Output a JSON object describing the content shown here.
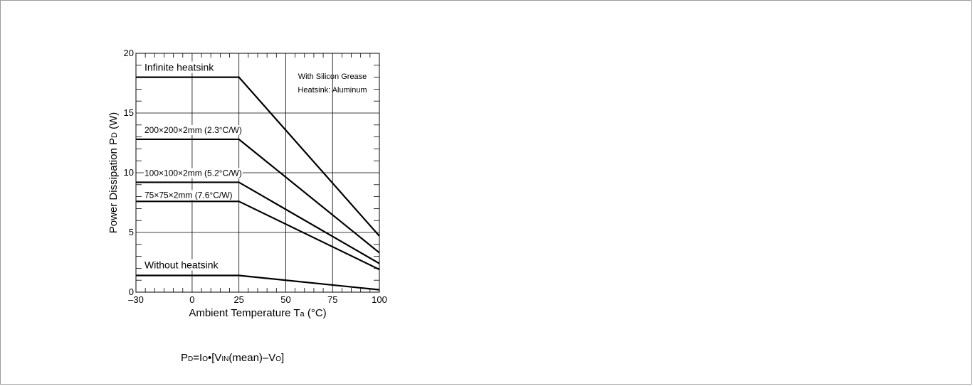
{
  "chart_data": {
    "type": "line",
    "xlabel": {
      "main": "Ambient Temperature T",
      "sub": "a",
      "unit": " (°C)"
    },
    "ylabel": {
      "main": "Power Dissipation P",
      "sub": "D",
      "unit": " (W)"
    },
    "xlim": [
      -30,
      100
    ],
    "ylim": [
      0,
      20
    ],
    "xticks": [
      -30,
      0,
      25,
      50,
      75,
      100
    ],
    "xtick_labels": [
      "–30",
      "0",
      "25",
      "50",
      "75",
      "100"
    ],
    "yticks": [
      0,
      5,
      10,
      15,
      20
    ],
    "ytick_labels": [
      "0",
      "5",
      "10",
      "15",
      "20"
    ],
    "grid": true,
    "note": [
      "With Silicon Grease",
      "Heatsink: Aluminum"
    ],
    "series": [
      {
        "name": "Infinite heatsink",
        "x": [
          -30,
          25,
          100
        ],
        "y": [
          18.0,
          18.0,
          4.7
        ]
      },
      {
        "name": "200×200×2mm (2.3°C/W)",
        "x": [
          -30,
          25,
          100
        ],
        "y": [
          12.8,
          12.8,
          3.3
        ]
      },
      {
        "name": "100×100×2mm (5.2°C/W)",
        "x": [
          -30,
          25,
          100
        ],
        "y": [
          9.2,
          9.2,
          2.4
        ]
      },
      {
        "name": "75×75×2mm (7.6°C/W)",
        "x": [
          -30,
          25,
          100
        ],
        "y": [
          7.6,
          7.6,
          1.9
        ]
      },
      {
        "name": "Without heatsink",
        "x": [
          -30,
          25,
          100
        ],
        "y": [
          1.4,
          1.4,
          0.2
        ]
      }
    ]
  },
  "formula": {
    "p": "P",
    "d": "D",
    "eq": "=I",
    "o": "O",
    "bullet": "•[V",
    "in": "IN",
    "mean": "(mean)–V",
    "o2": "O",
    "close": "]"
  }
}
